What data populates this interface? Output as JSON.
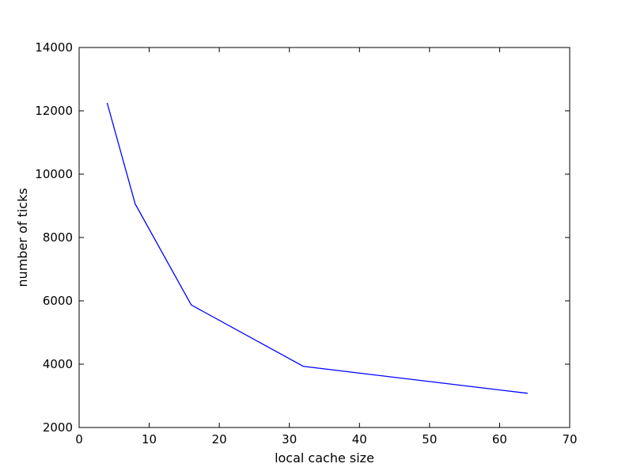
{
  "chart_data": {
    "type": "line",
    "title": "",
    "xlabel": "local cache size",
    "ylabel": "number of ticks",
    "xlim": [
      0,
      70
    ],
    "ylim": [
      2000,
      14000
    ],
    "xticks": [
      0,
      10,
      20,
      30,
      40,
      50,
      60,
      70
    ],
    "yticks": [
      2000,
      4000,
      6000,
      8000,
      10000,
      12000,
      14000
    ],
    "grid": false,
    "legend": "none",
    "series": [
      {
        "color": "#0000ff",
        "x": [
          4,
          8,
          16,
          32,
          64
        ],
        "y": [
          12250,
          9060,
          5870,
          3930,
          3080
        ]
      }
    ]
  }
}
